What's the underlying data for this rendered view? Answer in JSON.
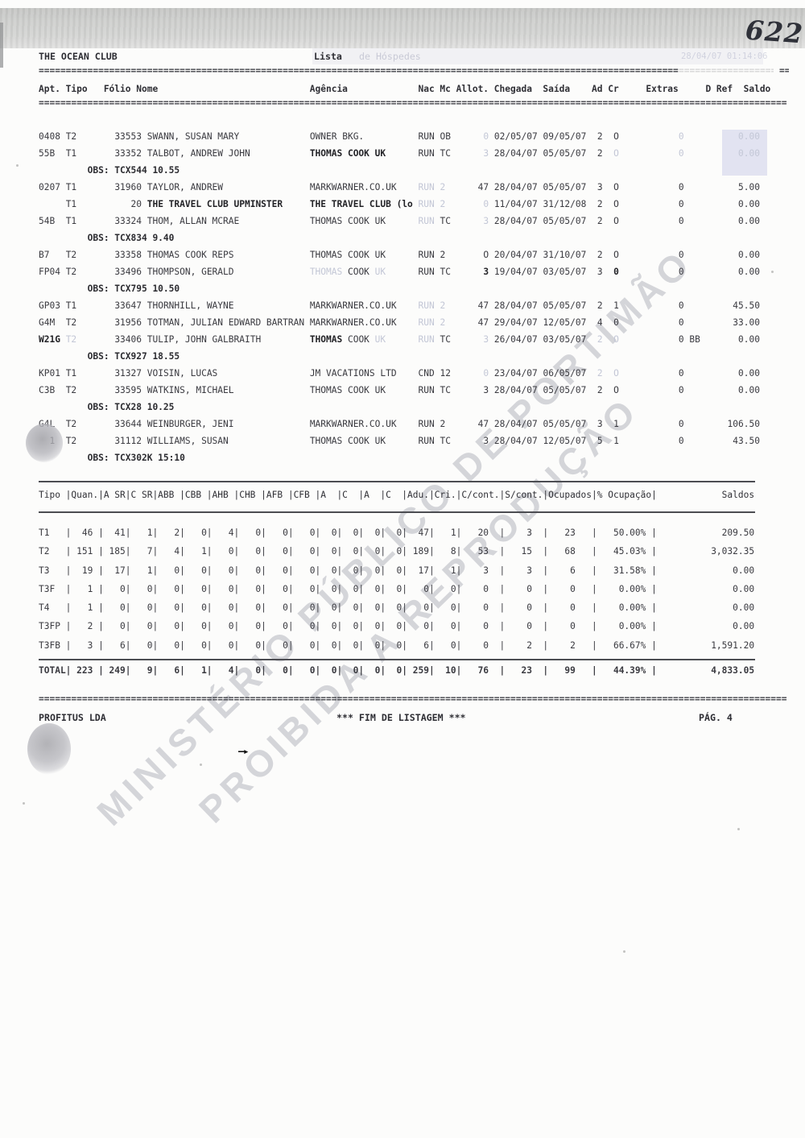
{
  "page_number_handwritten": "622",
  "header": {
    "company": "THE OCEAN CLUB",
    "report": "Lista",
    "report_faded": "de Hóspedes",
    "ghost_timestamp": "28/04/07 01:14:06"
  },
  "guest_table": {
    "columns": {
      "apt": "Apt.",
      "tipo": "Tipo",
      "folio": "Fólio",
      "nome": "Nome",
      "agencia": "Agência",
      "nac": "Nac",
      "mc": "Mc",
      "allot": "Allot.",
      "chegada": "Chegada",
      "saida": "Saída",
      "ad": "Ad",
      "cr": "Cr",
      "extras": "Extras",
      "dref": "D Ref",
      "saldo": "Saldo"
    },
    "obs_label": "OBS:",
    "rows": [
      {
        "apt": "0408",
        "tipo": "T2",
        "folio": "33553",
        "nome": "SWANN, SUSAN MARY",
        "agencia": "OWNER BKG.",
        "nac": "RUN",
        "mc": "OB",
        "allot": "0",
        "chegada": "02/05/07",
        "saida": "09/05/07",
        "ad": "2",
        "cr": "O",
        "extras": "0",
        "dref": "",
        "saldo": "0.00",
        "fades": [
          "allot",
          "extras",
          "saldo"
        ]
      },
      {
        "apt": "55B",
        "tipo": "T1",
        "folio": "33352",
        "nome": "TALBOT, ANDREW JOHN",
        "agencia": "THOMAS COOK UK",
        "nac": "RUN",
        "mc": "TC",
        "allot": "3",
        "chegada": "28/04/07",
        "saida": "05/05/07",
        "ad": "2",
        "cr": "O",
        "extras": "0",
        "dref": "",
        "saldo": "0.00",
        "fades": [
          "allot",
          "cr",
          "extras",
          "saldo"
        ],
        "bolds": [
          "agencia"
        ]
      },
      {
        "obs": "TCX544 10.55"
      },
      {
        "apt": "0207",
        "tipo": "T1",
        "folio": "31960",
        "nome": "TAYLOR, ANDREW",
        "agencia": "MARKWARNER.CO.UK",
        "nac": "RUN",
        "mc": "2",
        "allot": "47",
        "chegada": "28/04/07",
        "saida": "05/05/07",
        "ad": "3",
        "cr": "O",
        "extras": "0",
        "dref": "",
        "saldo": "5.00",
        "fades": [
          "nac",
          "mc"
        ]
      },
      {
        "apt": "",
        "tipo": "T1",
        "folio": "20",
        "nome": "THE TRAVEL CLUB UPMINSTER",
        "agencia": "THE TRAVEL CLUB (lo",
        "nac": "RUN",
        "mc": "2",
        "allot": "0",
        "chegada": "11/04/07",
        "saida": "31/12/08",
        "ad": "2",
        "cr": "O",
        "extras": "0",
        "dref": "",
        "saldo": "0.00",
        "fades": [
          "nac",
          "mc",
          "allot"
        ],
        "bolds": [
          "nome",
          "agencia"
        ]
      },
      {
        "apt": "54B",
        "tipo": "T1",
        "folio": "33324",
        "nome": "THOM, ALLAN MCRAE",
        "agencia": "THOMAS COOK UK",
        "nac": "RUN",
        "mc": "TC",
        "allot": "3",
        "chegada": "28/04/07",
        "saida": "05/05/07",
        "ad": "2",
        "cr": "O",
        "extras": "0",
        "dref": "",
        "saldo": "0.00",
        "fades": [
          "nac",
          "allot"
        ]
      },
      {
        "obs": "TCX834 9.40"
      },
      {
        "apt": "B7",
        "tipo": "T2",
        "folio": "33358",
        "nome": "THOMAS COOK REPS",
        "agencia": "THOMAS COOK UK",
        "nac": "RUN",
        "mc": "2",
        "allot": "O",
        "chegada": "20/04/07",
        "saida": "31/10/07",
        "ad": "2",
        "cr": "O",
        "extras": "0",
        "dref": "",
        "saldo": "0.00"
      },
      {
        "apt": "FP04",
        "tipo": "T2",
        "folio": "33496",
        "nome": "THOMPSON, GERALD",
        "agencia": [
          {
            "t": "THOMAS ",
            "c": "fade"
          },
          {
            "t": "COOK ",
            "c": ""
          },
          {
            "t": "UK",
            "c": "fade"
          }
        ],
        "nac": "RUN",
        "mc": "TC",
        "allot": "3",
        "chegada": "19/04/07",
        "saida": "03/05/07",
        "ad": "3",
        "cr": "0",
        "extras": "0",
        "dref": "",
        "saldo": "0.00",
        "bolds": [
          "allot",
          "cr"
        ]
      },
      {
        "obs": "TCX795 10.50"
      },
      {
        "apt": "GP03",
        "tipo": "T1",
        "folio": "33647",
        "nome": "THORNHILL, WAYNE",
        "agencia": "MARKWARNER.CO.UK",
        "nac": "RUN",
        "mc": "2",
        "allot": "47",
        "chegada": "28/04/07",
        "saida": "05/05/07",
        "ad": "2",
        "cr": "1",
        "extras": "0",
        "dref": "",
        "saldo": "45.50",
        "fades": [
          "nac",
          "mc"
        ]
      },
      {
        "apt": "G4M",
        "tipo": "T2",
        "folio": "31956",
        "nome": "TOTMAN, JULIAN EDWARD BARTRAN",
        "agencia": "MARKWARNER.CO.UK",
        "nac": "RUN",
        "mc": "2",
        "allot": "47",
        "chegada": "29/04/07",
        "saida": "12/05/07",
        "ad": "4",
        "cr": "0",
        "extras": "0",
        "dref": "",
        "saldo": "33.00",
        "fades": [
          "nac",
          "mc"
        ]
      },
      {
        "apt": "W21G",
        "tipo": "T2",
        "folio": "33406",
        "nome": "TULIP, JOHN GALBRAITH",
        "agencia": [
          {
            "t": "THOMAS ",
            "c": "boldc"
          },
          {
            "t": "COOK ",
            "c": ""
          },
          {
            "t": "UK",
            "c": "fade"
          }
        ],
        "nac": "RUN",
        "mc": "TC",
        "allot": "3",
        "chegada": "26/04/07",
        "saida": "03/05/07",
        "ad": "2",
        "cr": "O",
        "extras": "0",
        "dref": "BB",
        "saldo": "0.00",
        "fades": [
          "tipo",
          "nac",
          "allot",
          "ad",
          "cr"
        ],
        "bolds": [
          "apt"
        ]
      },
      {
        "obs": "TCX927 18.55"
      },
      {
        "apt": "KP01",
        "tipo": "T1",
        "folio": "31327",
        "nome": "VOISIN, LUCAS",
        "agencia": "JM VACATIONS LTD",
        "nac": "CND",
        "mc": "12",
        "allot": "0",
        "chegada": "23/04/07",
        "saida": "06/05/07",
        "ad": "2",
        "cr": "O",
        "extras": "0",
        "dref": "",
        "saldo": "0.00",
        "fades": [
          "allot",
          "ad",
          "cr"
        ]
      },
      {
        "apt": "C3B",
        "tipo": "T2",
        "folio": "33595",
        "nome": "WATKINS, MICHAEL",
        "agencia": "THOMAS COOK UK",
        "nac": "RUN",
        "mc": "TC",
        "allot": "3",
        "chegada": "28/04/07",
        "saida": "05/05/07",
        "ad": "2",
        "cr": "O",
        "extras": "0",
        "dref": "",
        "saldo": "0.00"
      },
      {
        "obs": "TCX28 10.25"
      },
      {
        "apt": "G4L",
        "tipo": "T2",
        "folio": "33644",
        "nome": "WEINBURGER, JENI",
        "agencia": "MARKWARNER.CO.UK",
        "nac": "RUN",
        "mc": "2",
        "allot": "47",
        "chegada": "28/04/07",
        "saida": "05/05/07",
        "ad": "3",
        "cr": "1",
        "extras": "0",
        "dref": "",
        "saldo": "106.50"
      },
      {
        "apt": "  1",
        "tipo": "T2",
        "folio": "31112",
        "nome": "WILLIAMS, SUSAN",
        "agencia": "THOMAS COOK UK",
        "nac": "RUN",
        "mc": "TC",
        "allot": "3",
        "chegada": "28/04/07",
        "saida": "12/05/07",
        "ad": "5",
        "cr": "1",
        "extras": "0",
        "dref": "",
        "saldo": "43.50"
      },
      {
        "obs": "TCX302K 15:10"
      }
    ]
  },
  "summary_table": {
    "columns": [
      "Tipo",
      "Quan.",
      "A SR",
      "C SR",
      "ABB",
      "CBB",
      "AHB",
      "CHB",
      "AFB",
      "CFB",
      "A",
      "C",
      "A",
      "C",
      "Adu.",
      "Cri.",
      "C/cont.",
      "S/cont.",
      "Ocupados",
      "% Ocupação",
      "Saldos"
    ],
    "rows": [
      {
        "label": "T1",
        "values": [
          "46",
          "41",
          "1",
          "2",
          "0",
          "4",
          "0",
          "0",
          "0",
          "0",
          "0",
          "0",
          "0",
          "47",
          "1",
          "20",
          "3",
          "23",
          "50.00%",
          "209.50"
        ]
      },
      {
        "label": "T2",
        "values": [
          "151",
          "185",
          "7",
          "4",
          "1",
          "0",
          "0",
          "0",
          "0",
          "0",
          "0",
          "0",
          "0",
          "189",
          "8",
          "53",
          "15",
          "68",
          "45.03%",
          "3,032.35"
        ]
      },
      {
        "label": "T3",
        "values": [
          "19",
          "17",
          "1",
          "0",
          "0",
          "0",
          "0",
          "0",
          "0",
          "0",
          "0",
          "0",
          "0",
          "17",
          "1",
          "3",
          "3",
          "6",
          "31.58%",
          "0.00"
        ]
      },
      {
        "label": "T3F",
        "values": [
          "1",
          "0",
          "0",
          "0",
          "0",
          "0",
          "0",
          "0",
          "0",
          "0",
          "0",
          "0",
          "0",
          "0",
          "0",
          "0",
          "0",
          "0",
          "0.00%",
          "0.00"
        ]
      },
      {
        "label": "T4",
        "values": [
          "1",
          "0",
          "0",
          "0",
          "0",
          "0",
          "0",
          "0",
          "0",
          "0",
          "0",
          "0",
          "0",
          "0",
          "0",
          "0",
          "0",
          "0",
          "0.00%",
          "0.00"
        ]
      },
      {
        "label": "T3FP",
        "values": [
          "2",
          "0",
          "0",
          "0",
          "0",
          "0",
          "0",
          "0",
          "0",
          "0",
          "0",
          "0",
          "0",
          "0",
          "0",
          "0",
          "0",
          "0",
          "0.00%",
          "0.00"
        ]
      },
      {
        "label": "T3FB",
        "values": [
          "3",
          "6",
          "0",
          "0",
          "0",
          "0",
          "0",
          "0",
          "0",
          "0",
          "0",
          "0",
          "0",
          "6",
          "0",
          "0",
          "2",
          "2",
          "66.67%",
          "1,591.20"
        ]
      }
    ],
    "total": {
      "label": "TOTAL",
      "values": [
        "223",
        "249",
        "9",
        "6",
        "1",
        "4",
        "0",
        "0",
        "0",
        "0",
        "0",
        "0",
        "0",
        "259",
        "10",
        "76",
        "23",
        "99",
        "44.39%",
        "4,833.05"
      ]
    }
  },
  "footer": {
    "left": "PROFITUS LDA",
    "center": "*** FIM DE LISTAGEM ***",
    "right": "PÁG. 4"
  },
  "watermark": {
    "line1": "MINISTÉRIO PÚBLICO DE PORTIMÃO",
    "line2": "PROIBIDA A REPRODUÇÃO"
  },
  "colors": {
    "ink": "#3a3a40",
    "faded_ink": "#c3c7d6",
    "highlight_box": "#e2e3f1",
    "watermark": "rgba(128,132,145,0.32)"
  }
}
